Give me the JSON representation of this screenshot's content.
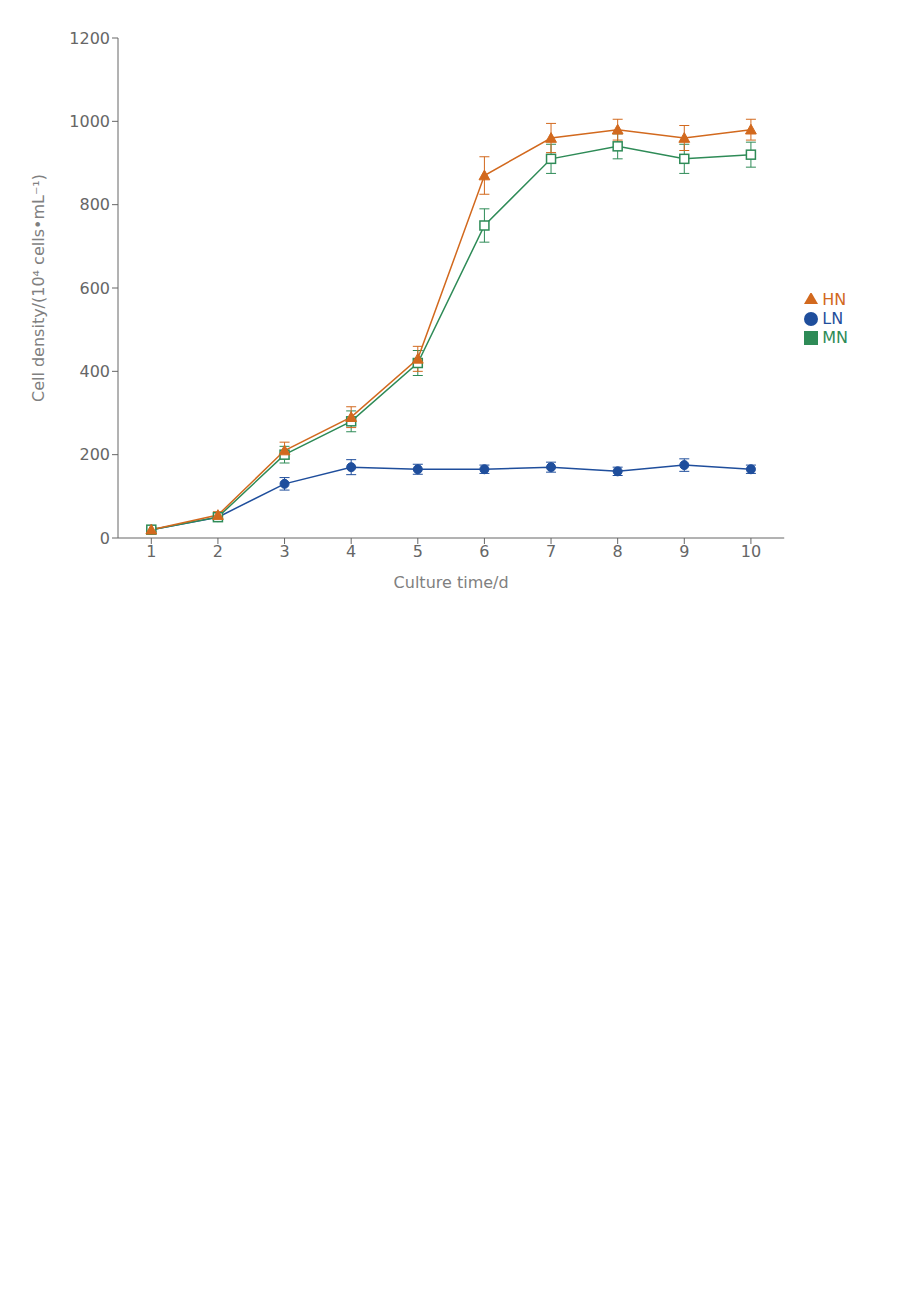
{
  "chart_data": {
    "type": "line",
    "x": [
      1,
      2,
      3,
      4,
      5,
      6,
      7,
      8,
      9,
      10
    ],
    "xlabel": "Culture time/d",
    "ylabel": "Cell density/(10⁴ cells•mL⁻¹)",
    "xlim": [
      0.5,
      10.5
    ],
    "xticks": [
      1,
      2,
      3,
      4,
      5,
      6,
      7,
      8,
      9,
      10
    ],
    "ylim": [
      0,
      1200
    ],
    "yticks": [
      0,
      200,
      400,
      600,
      800,
      1000,
      1200
    ],
    "grid": false,
    "legend": "right",
    "series": [
      {
        "name": "LN",
        "color": "#1f4e9c",
        "marker": "circle",
        "values": [
          20,
          50,
          130,
          170,
          165,
          165,
          170,
          160,
          175,
          165
        ],
        "errors": [
          5,
          8,
          15,
          18,
          12,
          10,
          12,
          10,
          15,
          10
        ]
      },
      {
        "name": "MN",
        "color": "#2e8b57",
        "marker": "square",
        "values": [
          20,
          50,
          200,
          280,
          420,
          750,
          910,
          940,
          910,
          920
        ],
        "errors": [
          5,
          8,
          20,
          25,
          30,
          40,
          35,
          30,
          35,
          30
        ]
      },
      {
        "name": "HN",
        "color": "#d2691e",
        "marker": "triangle",
        "values": [
          20,
          55,
          210,
          290,
          430,
          870,
          960,
          980,
          960,
          980
        ],
        "errors": [
          5,
          8,
          20,
          25,
          30,
          45,
          35,
          25,
          30,
          25
        ]
      }
    ]
  }
}
